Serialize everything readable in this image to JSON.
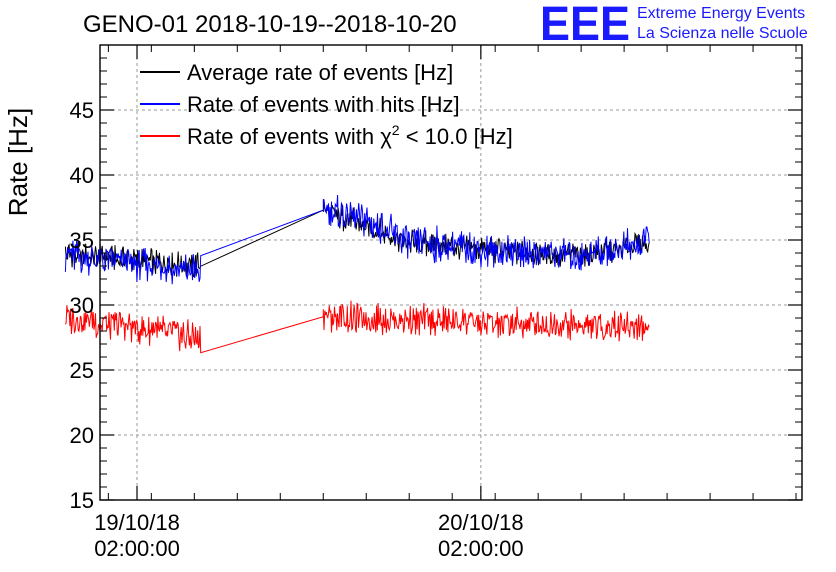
{
  "logo": {
    "mark": "EEE",
    "line1": "Extreme Energy Events",
    "line2": "La Scienza nelle Scuole",
    "color": "#1a1aff"
  },
  "chart_data": {
    "type": "line",
    "title": "GENO-01 2018-10-19--2018-10-20",
    "ylabel": "Rate [Hz]",
    "xlabel": "",
    "ylim": [
      15,
      50
    ],
    "yticks": [
      15,
      20,
      25,
      30,
      35,
      40,
      45
    ],
    "xlim": [
      "2018-10-18 23:25",
      "2018-10-21 00:25"
    ],
    "xticks": [
      {
        "at": "2018-10-19 02:00:00",
        "label": [
          "19/10/18",
          "02:00:00"
        ]
      },
      {
        "at": "2018-10-20 02:00:00",
        "label": [
          "20/10/18",
          "02:00:00"
        ]
      }
    ],
    "grid": true,
    "legend_position": "top-left",
    "series": [
      {
        "name": "Average rate of events [Hz]",
        "color": "#000000",
        "x": [
          "2018-10-18 21:00",
          "2018-10-19 06:30",
          "2018-10-19 15:00",
          "2018-10-19 21:00",
          "2018-10-20 03:00",
          "2018-10-20 09:00",
          "2018-10-20 13:45"
        ],
        "y": [
          33.9,
          33.0,
          37.3,
          34.8,
          34.2,
          33.8,
          34.8
        ]
      },
      {
        "name": "Rate of events with hits [Hz]",
        "color": "#0000ff",
        "x": [
          "2018-10-18 21:00",
          "2018-10-19 01:00",
          "2018-10-19 06:30",
          "2018-10-19 15:00",
          "2018-10-19 18:00",
          "2018-10-19 21:00",
          "2018-10-20 03:00",
          "2018-10-20 09:00",
          "2018-10-20 13:45"
        ],
        "y": [
          33.9,
          33.3,
          32.6,
          37.3,
          36.5,
          34.8,
          34.2,
          33.8,
          34.8
        ]
      },
      {
        "name": "Rate of events with χ² < 10.0 [Hz]",
        "color": "#ff0000",
        "x": [
          "2018-10-18 21:00",
          "2018-10-19 06:30",
          "2018-10-19 15:00",
          "2018-10-20 03:00",
          "2018-10-20 13:45"
        ],
        "y": [
          29.0,
          27.5,
          29.1,
          28.6,
          28.3
        ]
      }
    ]
  }
}
